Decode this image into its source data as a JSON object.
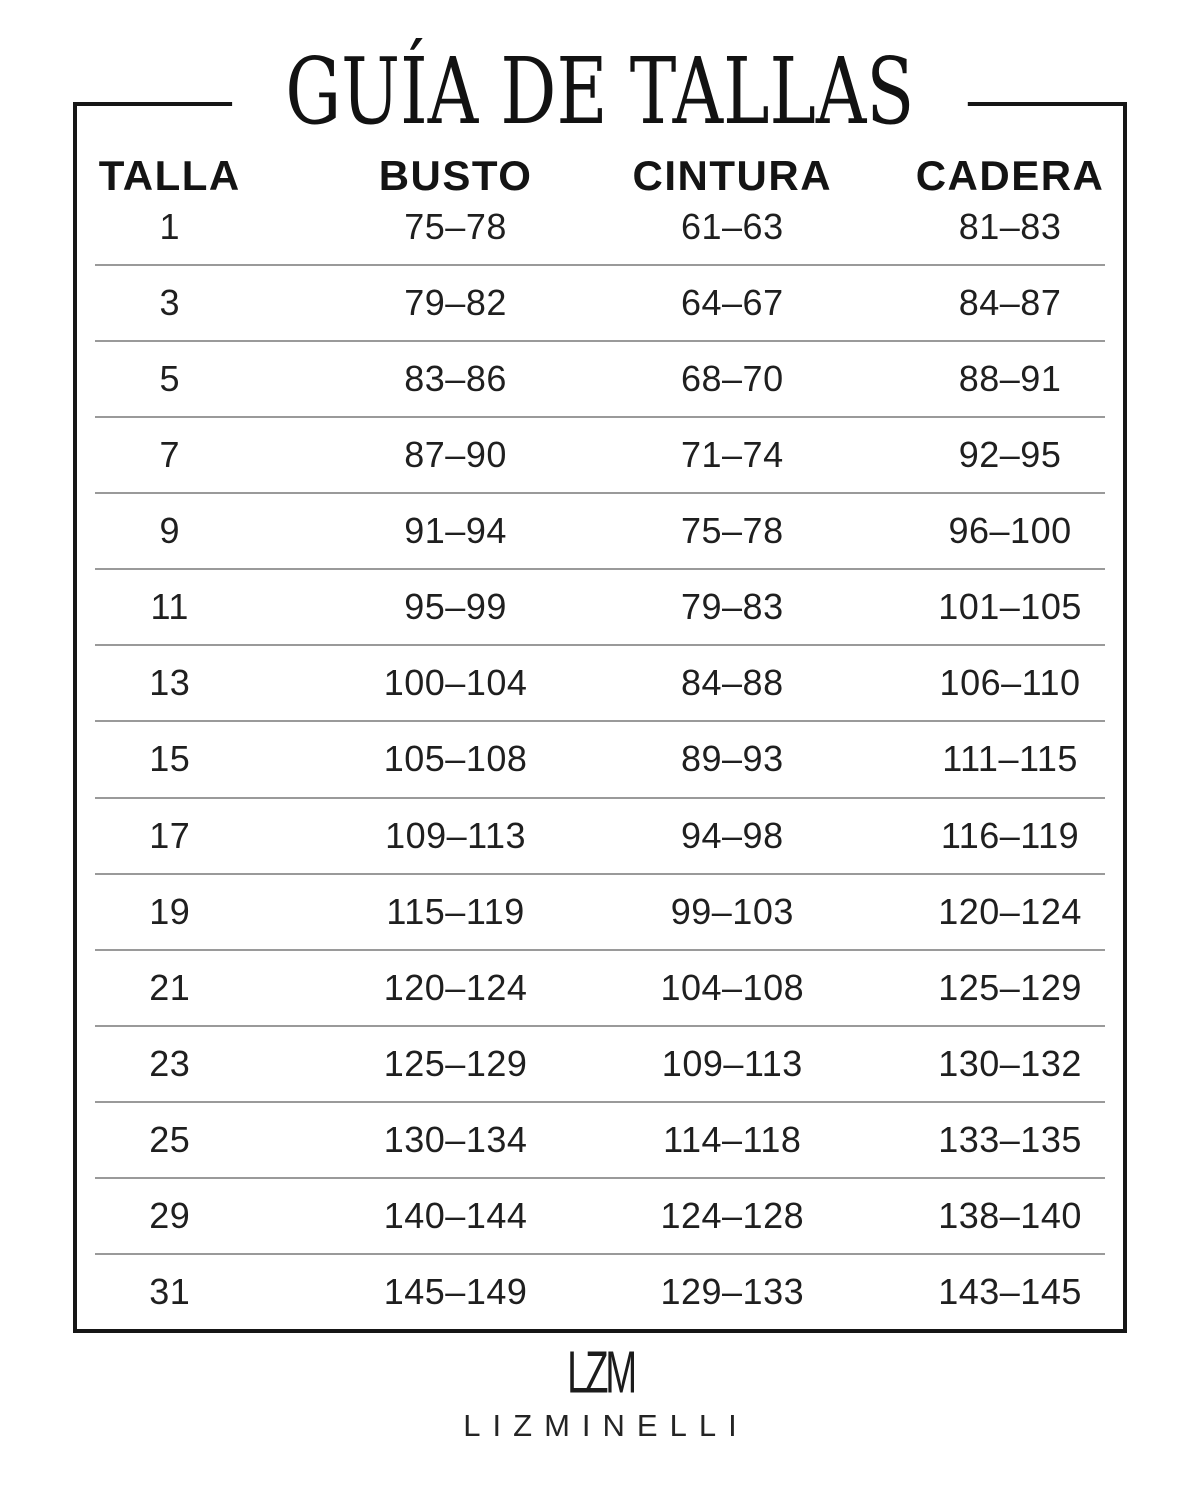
{
  "title": "GUÍA DE TALLAS",
  "table": {
    "headers": [
      "TALLA",
      "BUSTO",
      "CINTURA",
      "CADERA"
    ],
    "rows": [
      {
        "talla": "1",
        "busto": "75–78",
        "cintura": "61–63",
        "cadera": "81–83"
      },
      {
        "talla": "3",
        "busto": "79–82",
        "cintura": "64–67",
        "cadera": "84–87"
      },
      {
        "talla": "5",
        "busto": "83–86",
        "cintura": "68–70",
        "cadera": "88–91"
      },
      {
        "talla": "7",
        "busto": "87–90",
        "cintura": "71–74",
        "cadera": "92–95"
      },
      {
        "talla": "9",
        "busto": "91–94",
        "cintura": "75–78",
        "cadera": "96–100"
      },
      {
        "talla": "11",
        "busto": "95–99",
        "cintura": "79–83",
        "cadera": "101–105"
      },
      {
        "talla": "13",
        "busto": "100–104",
        "cintura": "84–88",
        "cadera": "106–110"
      },
      {
        "talla": "15",
        "busto": "105–108",
        "cintura": "89–93",
        "cadera": "111–115"
      },
      {
        "talla": "17",
        "busto": "109–113",
        "cintura": "94–98",
        "cadera": "116–119"
      },
      {
        "talla": "19",
        "busto": "115–119",
        "cintura": "99–103",
        "cadera": "120–124"
      },
      {
        "talla": "21",
        "busto": "120–124",
        "cintura": "104–108",
        "cadera": "125–129"
      },
      {
        "talla": "23",
        "busto": "125–129",
        "cintura": "109–113",
        "cadera": "130–132"
      },
      {
        "talla": "25",
        "busto": "130–134",
        "cintura": "114–118",
        "cadera": "133–135"
      },
      {
        "talla": "29",
        "busto": "140–144",
        "cintura": "124–128",
        "cadera": "138–140"
      },
      {
        "talla": "31",
        "busto": "145–149",
        "cintura": "129–133",
        "cadera": "143–145"
      }
    ]
  },
  "footer": {
    "monogram": "LZM",
    "wordmark": "LIZMINELLI"
  },
  "colors": {
    "background": "#ffffff",
    "text": "#1f1f1f",
    "heading": "#141414",
    "border": "#161616",
    "separator": "#9a9a9a"
  }
}
